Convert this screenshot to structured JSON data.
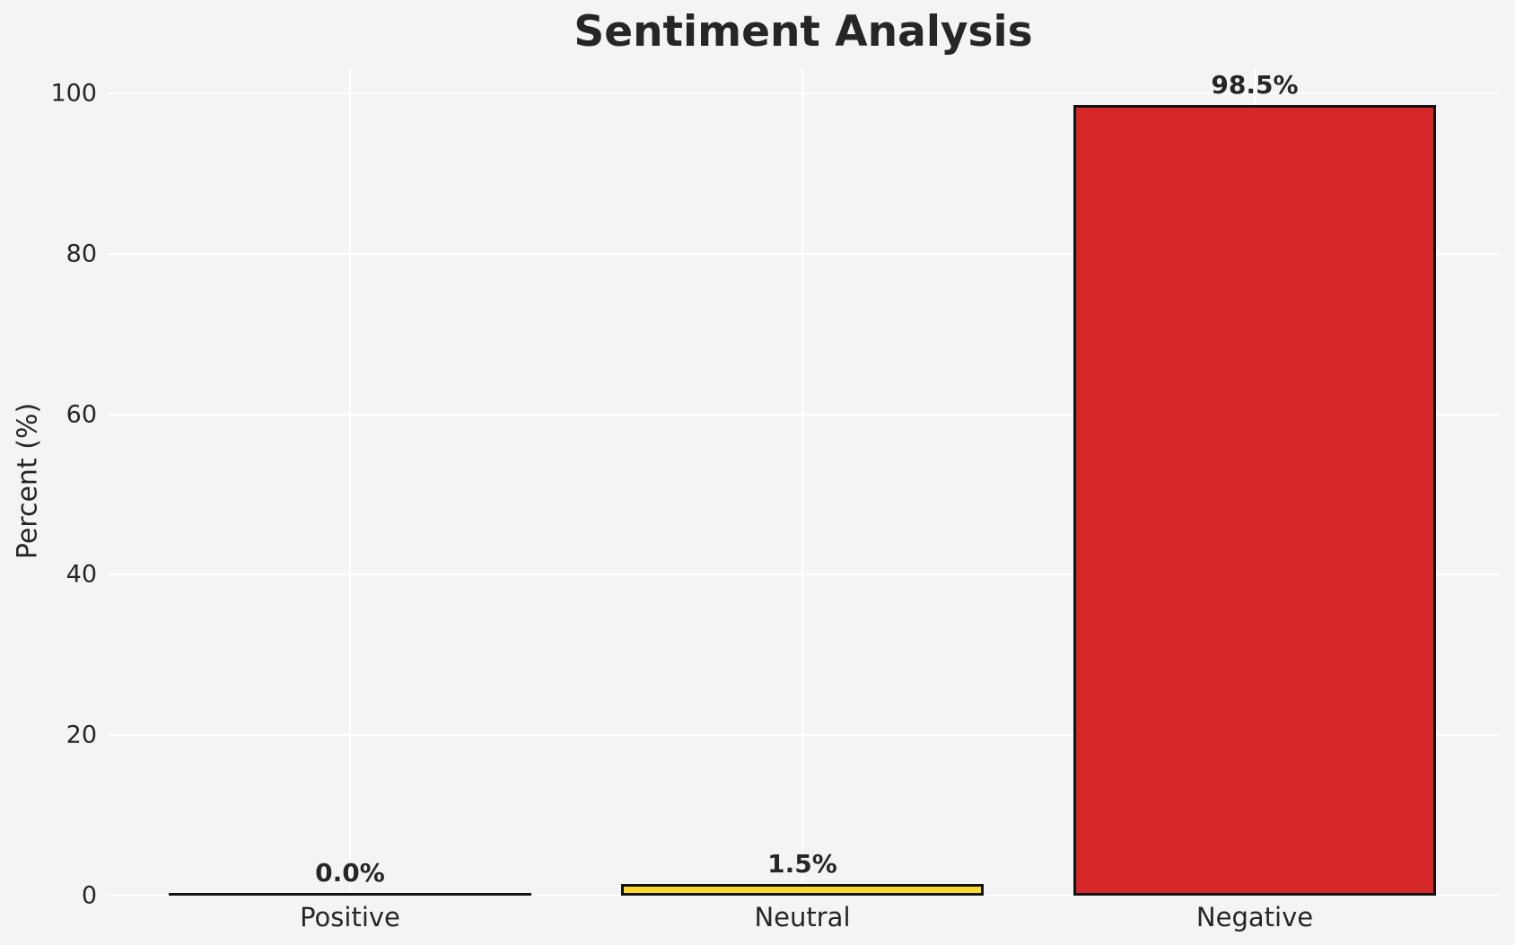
{
  "chart_data": {
    "type": "bar",
    "title": "Sentiment Analysis",
    "ylabel": "Percent (%)",
    "xlabel": "",
    "categories": [
      "Positive",
      "Neutral",
      "Negative"
    ],
    "values": [
      0.0,
      1.5,
      98.5
    ],
    "value_labels": [
      "0.0%",
      "1.5%",
      "98.5%"
    ],
    "bar_colors": [
      null,
      "#FCD82F",
      "#D62828"
    ],
    "bar_edge_color": "#131313",
    "yticks": [
      0,
      20,
      40,
      60,
      80,
      100
    ],
    "ytick_labels": [
      "0",
      "20",
      "40",
      "60",
      "80",
      "100"
    ],
    "ylim": [
      0,
      103
    ],
    "grid": true,
    "legend": "none",
    "background_color": "#f4f4f5",
    "gridline_color": "#ffffff",
    "text_color": "#262626"
  }
}
